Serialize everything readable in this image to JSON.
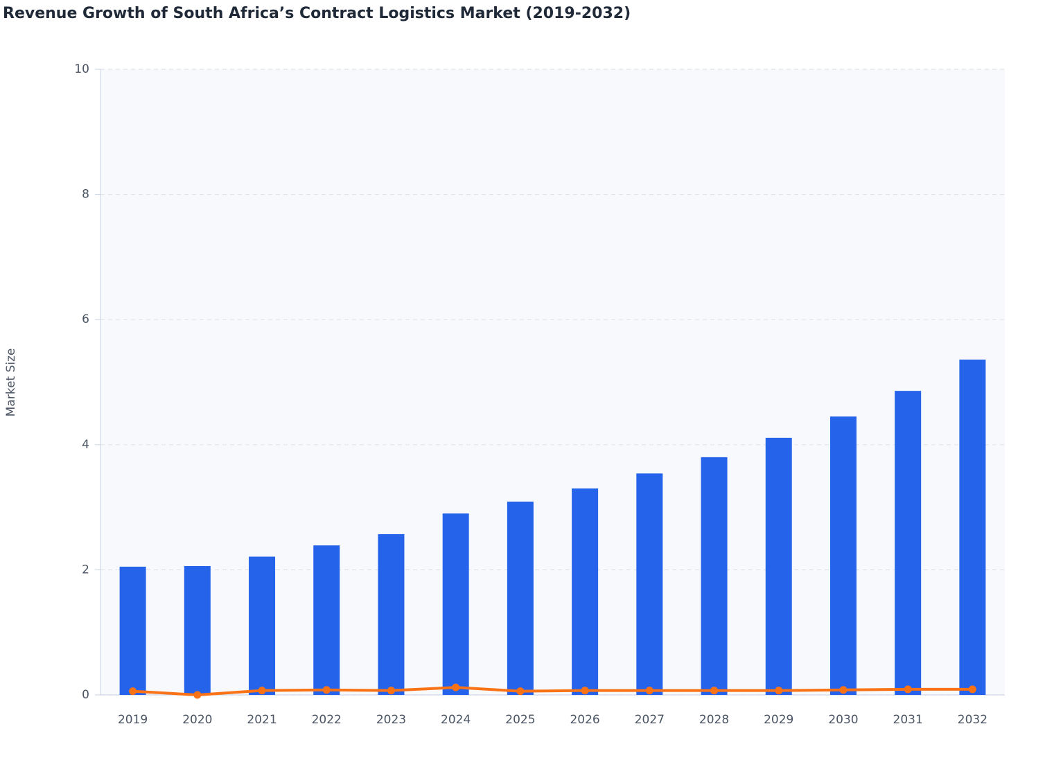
{
  "chart_data": {
    "type": "bar",
    "title": "Revenue Growth of South Africa’s Contract Logistics Market (2019-2032)",
    "y_label": "Market Size",
    "categories": [
      "2019",
      "2020",
      "2021",
      "2022",
      "2023",
      "2024",
      "2025",
      "2026",
      "2027",
      "2028",
      "2029",
      "2030",
      "2031",
      "2032"
    ],
    "series": [
      {
        "type": "bar",
        "color": "#2563eb",
        "values": [
          2.05,
          2.06,
          2.21,
          2.39,
          2.57,
          2.9,
          3.09,
          3.3,
          3.54,
          3.8,
          4.11,
          4.45,
          4.86,
          5.36
        ]
      },
      {
        "type": "line",
        "color": "#f97316",
        "values": [
          0.06,
          0,
          0.07,
          0.08,
          0.07,
          0.12,
          0.06,
          0.07,
          0.07,
          0.07,
          0.07,
          0.08,
          0.09,
          0.09
        ]
      }
    ],
    "ylim": [
      0,
      10
    ],
    "yticks": [
      0,
      2,
      4,
      6,
      8,
      10
    ],
    "grid": true
  }
}
